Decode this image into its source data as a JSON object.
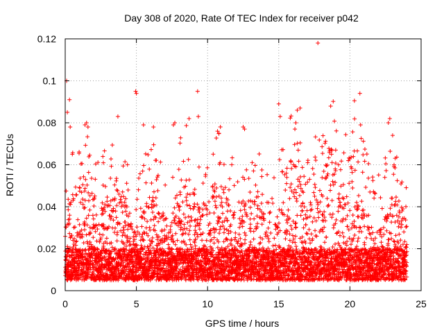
{
  "chart_data": {
    "type": "scatter",
    "title": "Day 308 of 2020, Rate Of TEC Index for receiver p042",
    "xlabel": "GPS time / hours",
    "ylabel": "ROTI / TECUs",
    "xlim": [
      0,
      25
    ],
    "ylim": [
      0,
      0.12
    ],
    "x_ticks": [
      "0",
      "5",
      "10",
      "15",
      "20",
      "25"
    ],
    "y_ticks": [
      "0",
      "0.02",
      "0.04",
      "0.06",
      "0.08",
      "0.1",
      "0.12"
    ],
    "grid": true,
    "marker": "plus",
    "color": "#ff0000",
    "x_range_data": [
      0,
      24
    ],
    "dense_band": [
      0.005,
      0.02
    ],
    "series": [
      {
        "x": [
          0.1,
          0.15,
          0.3,
          0.35,
          0.5,
          1.5,
          1.6,
          3.7,
          4.95,
          5.0,
          5.5,
          6.2,
          7.6,
          7.7,
          8.7,
          9.3,
          9.35,
          10.7,
          10.8,
          12.5,
          12.6,
          15.0,
          15.1,
          16.2,
          16.3,
          16.5,
          17.75,
          19.0,
          19.2,
          20.7,
          20.75,
          22.7,
          22.8,
          23.0
        ],
        "y": [
          0.1,
          0.085,
          0.091,
          0.078,
          0.065,
          0.08,
          0.078,
          0.083,
          0.095,
          0.094,
          0.079,
          0.078,
          0.079,
          0.08,
          0.082,
          0.095,
          0.083,
          0.076,
          0.075,
          0.078,
          0.077,
          0.089,
          0.083,
          0.08,
          0.086,
          0.087,
          0.118,
          0.067,
          0.06,
          0.094,
          0.079,
          0.08,
          0.082,
          0.074
        ]
      }
    ]
  }
}
